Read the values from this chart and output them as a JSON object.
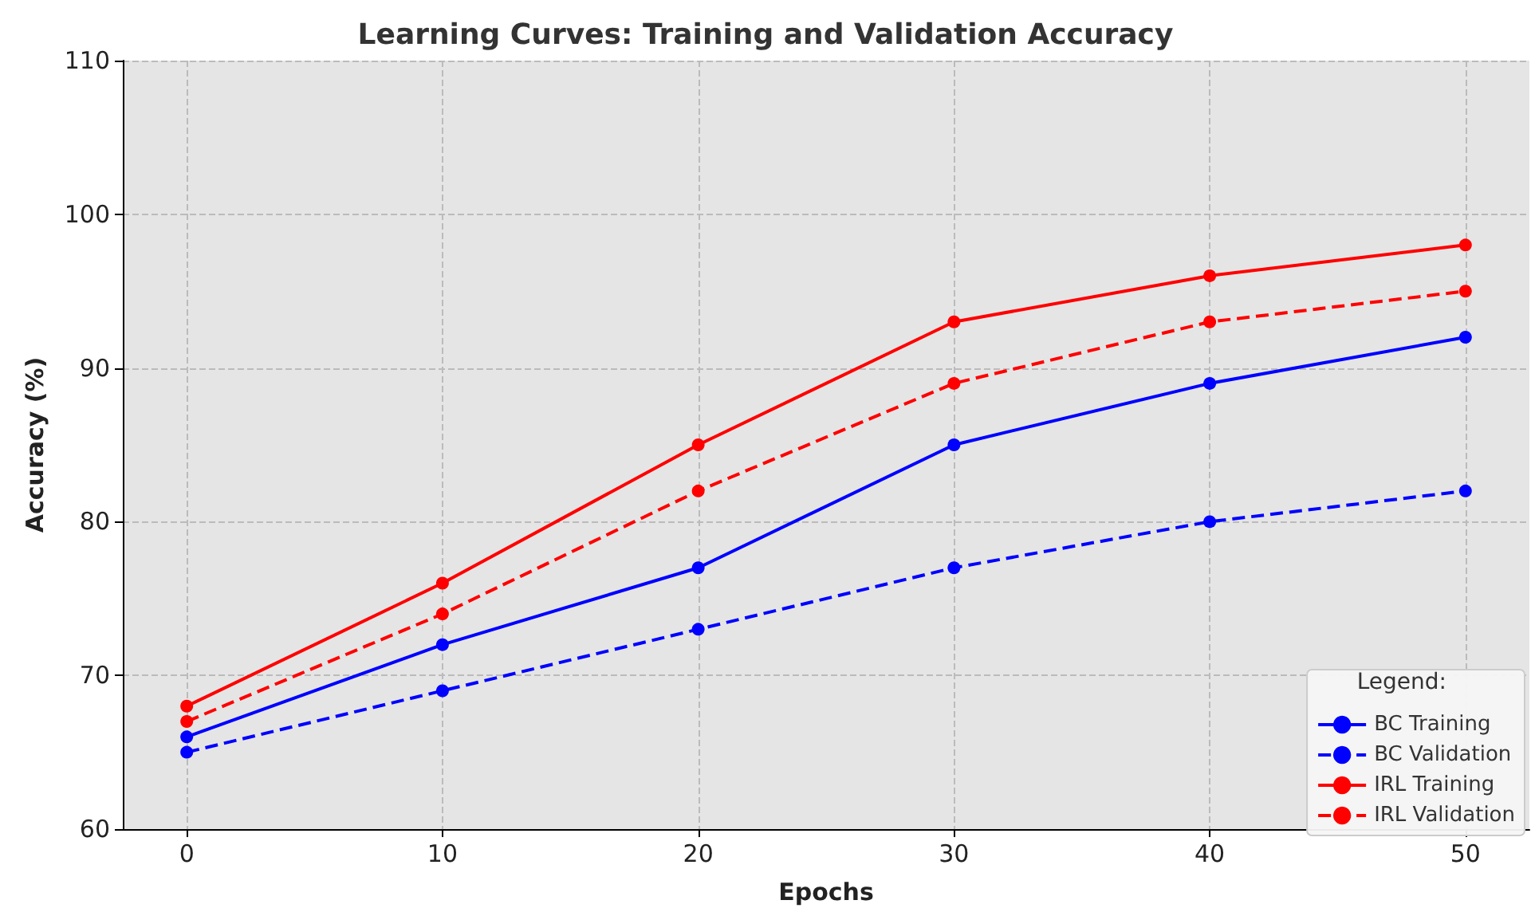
{
  "chart_data": {
    "type": "line",
    "title": "Learning Curves: Training and Validation Accuracy",
    "xlabel": "Epochs",
    "ylabel": "Accuracy (%)",
    "legend_title": "Legend:",
    "x": [
      0,
      10,
      20,
      30,
      40,
      50
    ],
    "series": [
      {
        "name": "BC Training",
        "color": "#0000ff",
        "line_style": "solid",
        "values": [
          66,
          72,
          77,
          85,
          89,
          92
        ]
      },
      {
        "name": "BC Validation",
        "color": "#0000ff",
        "line_style": "dashed",
        "values": [
          65,
          69,
          73,
          77,
          80,
          82
        ]
      },
      {
        "name": "IRL Training",
        "color": "#ff0000",
        "line_style": "solid",
        "values": [
          68,
          76,
          85,
          93,
          96,
          98
        ]
      },
      {
        "name": "IRL Validation",
        "color": "#ff0000",
        "line_style": "dashed",
        "values": [
          67,
          74,
          82,
          89,
          93,
          95
        ]
      }
    ],
    "xlim": [
      -2.5,
      52.5
    ],
    "xticks": [
      0,
      10,
      20,
      30,
      40,
      50
    ],
    "ylim": [
      60,
      110
    ],
    "yticks": [
      60,
      70,
      80,
      90,
      100,
      110
    ],
    "grid": true,
    "legend": "bottom right",
    "marker": "circle"
  }
}
